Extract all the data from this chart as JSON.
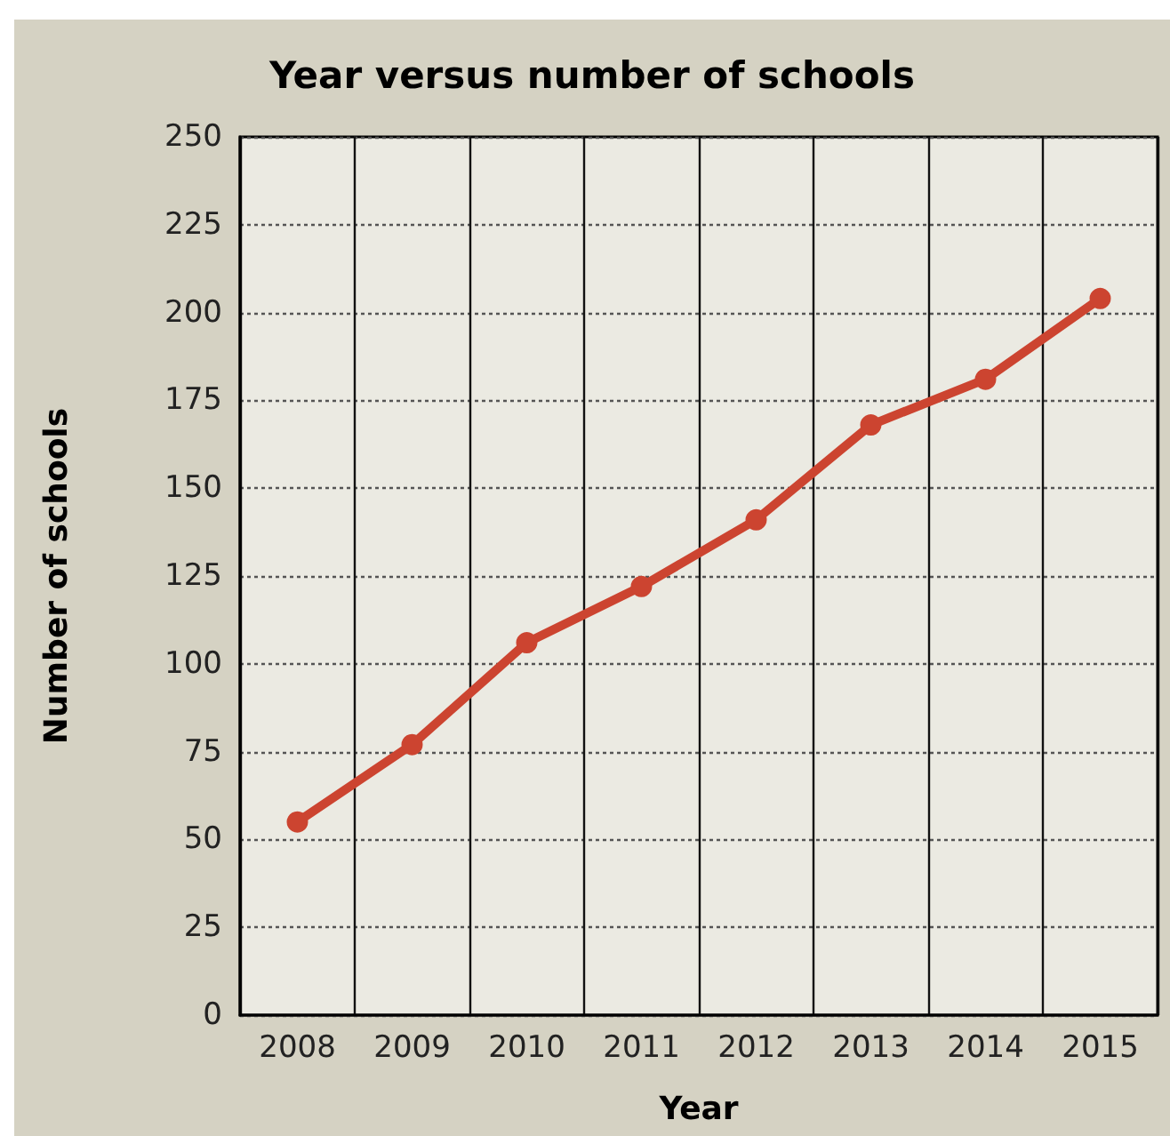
{
  "chart_data": {
    "type": "line",
    "title": "Year versus number of schools",
    "xlabel": "Year",
    "ylabel": "Number of schools",
    "categories": [
      "2008",
      "2009",
      "2010",
      "2011",
      "2012",
      "2013",
      "2014",
      "2015"
    ],
    "series": [
      {
        "color": "#cc4430",
        "values": [
          55,
          77,
          106,
          122,
          141,
          168,
          181,
          204
        ]
      }
    ],
    "ylim": [
      0,
      250
    ],
    "yticks": [
      0,
      25,
      50,
      75,
      100,
      125,
      150,
      175,
      200,
      225,
      250
    ],
    "grid": true,
    "marker": "circle",
    "line_style": "solid"
  }
}
